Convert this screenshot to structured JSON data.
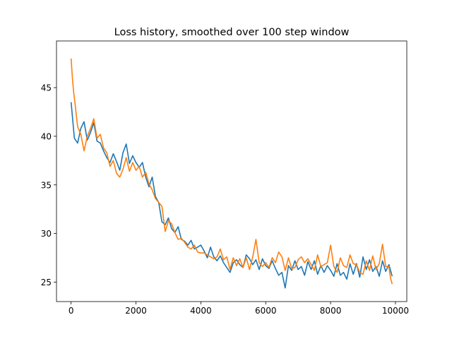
{
  "chart_data": {
    "type": "line",
    "title": "Loss history, smoothed over 100 step window",
    "xlabel": "",
    "ylabel": "",
    "xlim": [
      -450,
      10350
    ],
    "ylim": [
      23,
      49.8
    ],
    "xticks": [
      0,
      2000,
      4000,
      6000,
      8000,
      10000
    ],
    "yticks": [
      25,
      30,
      35,
      40,
      45
    ],
    "grid": false,
    "legend": "none",
    "series": [
      {
        "color": "#1f77b4",
        "x": [
          0,
          100,
          200,
          300,
          400,
          500,
          600,
          700,
          800,
          900,
          1000,
          1100,
          1200,
          1300,
          1400,
          1500,
          1600,
          1700,
          1800,
          1900,
          2000,
          2100,
          2200,
          2300,
          2400,
          2500,
          2600,
          2700,
          2800,
          2900,
          3000,
          3100,
          3200,
          3300,
          3400,
          3500,
          3600,
          3700,
          3800,
          3900,
          4000,
          4100,
          4200,
          4300,
          4400,
          4500,
          4600,
          4700,
          4800,
          4900,
          5000,
          5100,
          5200,
          5300,
          5400,
          5500,
          5600,
          5700,
          5800,
          5900,
          6000,
          6100,
          6200,
          6300,
          6400,
          6500,
          6600,
          6700,
          6800,
          6900,
          7000,
          7100,
          7200,
          7300,
          7400,
          7500,
          7600,
          7700,
          7800,
          7900,
          8000,
          8100,
          8200,
          8300,
          8400,
          8500,
          8600,
          8700,
          8800,
          8900,
          9000,
          9100,
          9200,
          9300,
          9400,
          9500,
          9600,
          9700,
          9800,
          9900
        ],
        "y": [
          43.5,
          39.8,
          39.3,
          40.8,
          41.5,
          39.6,
          40.4,
          41.4,
          39.5,
          39.3,
          38.5,
          37.8,
          37.3,
          38.2,
          37.4,
          36.5,
          38.3,
          39.2,
          37.2,
          38.0,
          37.3,
          36.8,
          37.3,
          35.8,
          34.8,
          35.8,
          33.8,
          33.2,
          31.2,
          30.9,
          31.6,
          30.5,
          30.1,
          30.7,
          29.4,
          29.2,
          28.8,
          29.3,
          28.4,
          28.6,
          28.8,
          28.2,
          27.5,
          28.6,
          27.6,
          27.2,
          27.7,
          27.0,
          26.5,
          26.0,
          27.0,
          27.3,
          26.8,
          26.5,
          27.8,
          27.4,
          26.8,
          27.3,
          26.3,
          27.4,
          26.7,
          26.4,
          27.2,
          26.4,
          25.7,
          26.0,
          24.4,
          26.7,
          26.2,
          27.2,
          26.3,
          26.6,
          25.7,
          27.1,
          26.3,
          27.2,
          25.8,
          26.7,
          26.0,
          26.7,
          26.2,
          25.6,
          26.9,
          25.7,
          26.0,
          25.3,
          26.9,
          25.8,
          26.9,
          25.5,
          27.6,
          26.3,
          27.3,
          26.1,
          26.6,
          25.6,
          27.2,
          26.1,
          26.8,
          25.6
        ]
      },
      {
        "color": "#ff7f0e",
        "x": [
          0,
          40,
          80,
          120,
          160,
          200,
          300,
          400,
          500,
          600,
          700,
          800,
          900,
          1000,
          1100,
          1200,
          1300,
          1400,
          1500,
          1600,
          1700,
          1800,
          1900,
          2000,
          2100,
          2200,
          2300,
          2400,
          2500,
          2600,
          2700,
          2800,
          2900,
          3000,
          3100,
          3200,
          3300,
          3400,
          3500,
          3600,
          3700,
          3800,
          3900,
          4000,
          4100,
          4200,
          4300,
          4400,
          4500,
          4600,
          4700,
          4800,
          4900,
          5000,
          5100,
          5200,
          5300,
          5400,
          5500,
          5600,
          5700,
          5800,
          5900,
          6000,
          6100,
          6200,
          6300,
          6400,
          6500,
          6600,
          6700,
          6800,
          6900,
          7000,
          7100,
          7200,
          7300,
          7400,
          7500,
          7600,
          7700,
          7800,
          7900,
          8000,
          8100,
          8200,
          8300,
          8400,
          8500,
          8600,
          8700,
          8800,
          8900,
          9000,
          9100,
          9200,
          9300,
          9400,
          9500,
          9600,
          9700,
          9800,
          9850,
          9900
        ],
        "y": [
          48.0,
          46.0,
          44.5,
          43.4,
          42.2,
          41.0,
          40.2,
          38.5,
          40.0,
          40.8,
          41.8,
          39.8,
          40.2,
          38.8,
          38.3,
          36.9,
          37.5,
          36.2,
          35.8,
          36.6,
          37.8,
          36.4,
          37.3,
          36.5,
          36.9,
          35.8,
          36.3,
          35.1,
          34.5,
          33.6,
          33.2,
          32.8,
          30.2,
          31.3,
          31.0,
          30.1,
          29.4,
          29.5,
          29.1,
          28.6,
          28.4,
          28.8,
          28.1,
          28.0,
          28.0,
          27.8,
          27.6,
          27.4,
          27.6,
          28.4,
          27.3,
          27.6,
          26.3,
          27.5,
          26.7,
          27.4,
          26.5,
          27.5,
          26.3,
          27.6,
          29.4,
          27.0,
          26.6,
          27.0,
          26.5,
          27.5,
          27.0,
          28.1,
          27.6,
          26.2,
          27.5,
          26.4,
          26.5,
          27.3,
          27.6,
          27.0,
          27.4,
          26.8,
          26.2,
          27.8,
          26.6,
          26.8,
          27.0,
          28.8,
          26.6,
          26.0,
          27.5,
          26.7,
          26.5,
          27.8,
          26.9,
          26.8,
          26.0,
          25.8,
          27.2,
          26.2,
          27.7,
          26.3,
          26.9,
          28.9,
          26.6,
          26.6,
          25.4,
          24.8
        ]
      }
    ]
  }
}
